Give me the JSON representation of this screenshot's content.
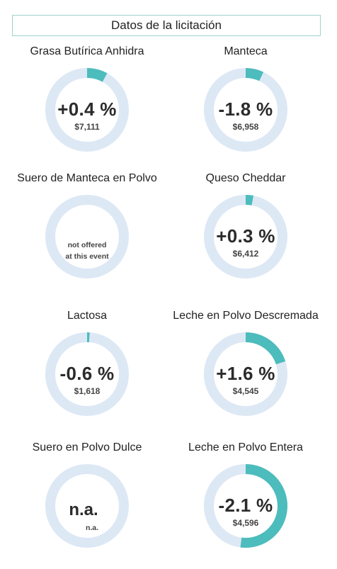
{
  "header": {
    "title": "Datos de la licitación"
  },
  "colors": {
    "accent": "#4cbcbc",
    "track": "#dde8f5"
  },
  "products": [
    {
      "name": "Grasa Butírica Anhidra",
      "change": "+0.4 %",
      "price": "$7,111",
      "fill": 0.08
    },
    {
      "name": "Manteca",
      "change": "-1.8 %",
      "price": "$6,958",
      "fill": 0.07
    },
    {
      "name": "Suero de Manteca en Polvo",
      "note_line1": "not offered",
      "note_line2": "at this event",
      "fill": 0
    },
    {
      "name": "Queso Cheddar",
      "change": "+0.3 %",
      "price": "$6,412",
      "fill": 0.03
    },
    {
      "name": "Lactosa",
      "change": "-0.6 %",
      "price": "$1,618",
      "fill": 0.01
    },
    {
      "name": "Leche en Polvo Descremada",
      "change": "+1.6 %",
      "price": "$4,545",
      "fill": 0.2
    },
    {
      "name": "Suero en Polvo Dulce",
      "na_big": "n.a.",
      "na_small": "n.a.",
      "fill": 0
    },
    {
      "name": "Leche en Polvo Entera",
      "change": "-2.1 %",
      "price": "$4,596",
      "fill": 0.52
    }
  ]
}
